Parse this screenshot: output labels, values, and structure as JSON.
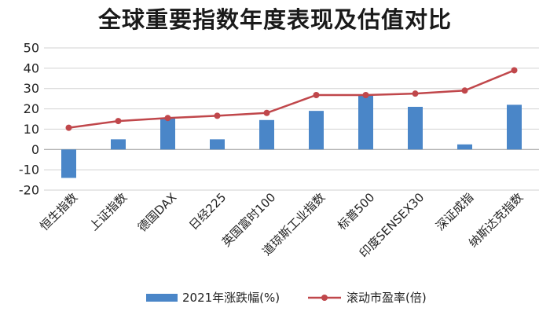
{
  "chart_data": {
    "type": "bar",
    "title": "全球重要指数年度表现及估值对比",
    "categories": [
      "恒生指数",
      "上证指数",
      "德国DAX",
      "日经225",
      "英国富时100",
      "道琼斯工业指数",
      "标普500",
      "印度SENSEX30",
      "深证成指",
      "纳斯达克指数"
    ],
    "series": [
      {
        "name": "2021年涨跌幅(%)",
        "kind": "bar",
        "color": "#4a86c8",
        "values": [
          -14,
          5,
          15.5,
          5,
          14.5,
          19,
          27,
          21,
          2.5,
          22
        ]
      },
      {
        "name": "滚动市盈率(倍)",
        "kind": "line",
        "color": "#c0474b",
        "values": [
          10.7,
          14,
          15.5,
          16.6,
          18,
          26.8,
          26.8,
          27.5,
          29,
          39
        ]
      }
    ],
    "ylim": [
      -20,
      50
    ],
    "yticks": [
      50,
      40,
      30,
      20,
      10,
      0,
      -10,
      -20
    ],
    "grid": true,
    "legend": "bottom"
  }
}
